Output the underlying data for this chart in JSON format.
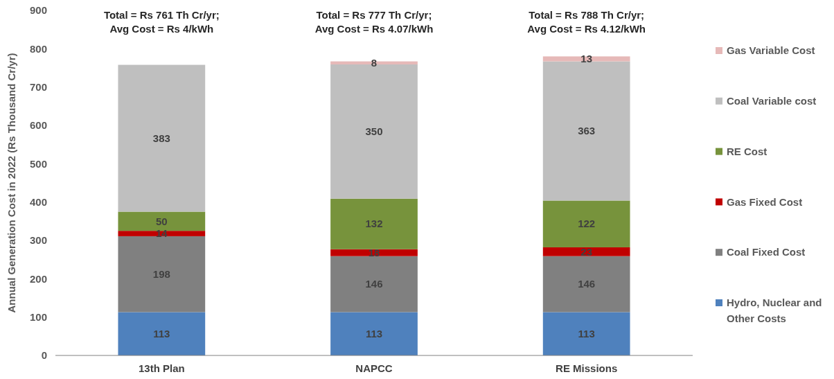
{
  "chart_data": {
    "type": "bar",
    "stacked": true,
    "ylabel": "Annual Generation Cost in 2022 (Rs Thousand Cr/yr)",
    "categories": [
      "13th Plan",
      "NAPCC",
      "RE Missions"
    ],
    "ylim": [
      0,
      900
    ],
    "yticks": [
      0,
      100,
      200,
      300,
      400,
      500,
      600,
      700,
      800,
      900
    ],
    "grid": false,
    "legend": "right",
    "data_labels": true,
    "series": [
      {
        "name": "Hydro, Nuclear and Other Costs",
        "color": "#4f81bd",
        "values": [
          113,
          113,
          113
        ]
      },
      {
        "name": "Coal Fixed Cost",
        "color": "#808080",
        "values": [
          198,
          146,
          146
        ]
      },
      {
        "name": "Gas Fixed Cost",
        "color": "#c00000",
        "values": [
          14,
          18,
          23
        ]
      },
      {
        "name": "RE Cost",
        "color": "#77933c",
        "values": [
          50,
          132,
          122
        ]
      },
      {
        "name": "Coal Variable cost",
        "color": "#bfbfbf",
        "values": [
          383,
          350,
          363
        ]
      },
      {
        "name": "Gas Variable Cost",
        "color": "#e6b9b8",
        "values": [
          null,
          8,
          13
        ]
      }
    ],
    "totals": [
      "Total = Rs 761 Th Cr/yr;\nAvg Cost = Rs 4/kWh",
      "Total = Rs 777 Th Cr/yr;\nAvg Cost = Rs 4.07/kWh",
      "Total = Rs 788 Th Cr/yr;\nAvg Cost = Rs 4.12/kWh"
    ]
  }
}
